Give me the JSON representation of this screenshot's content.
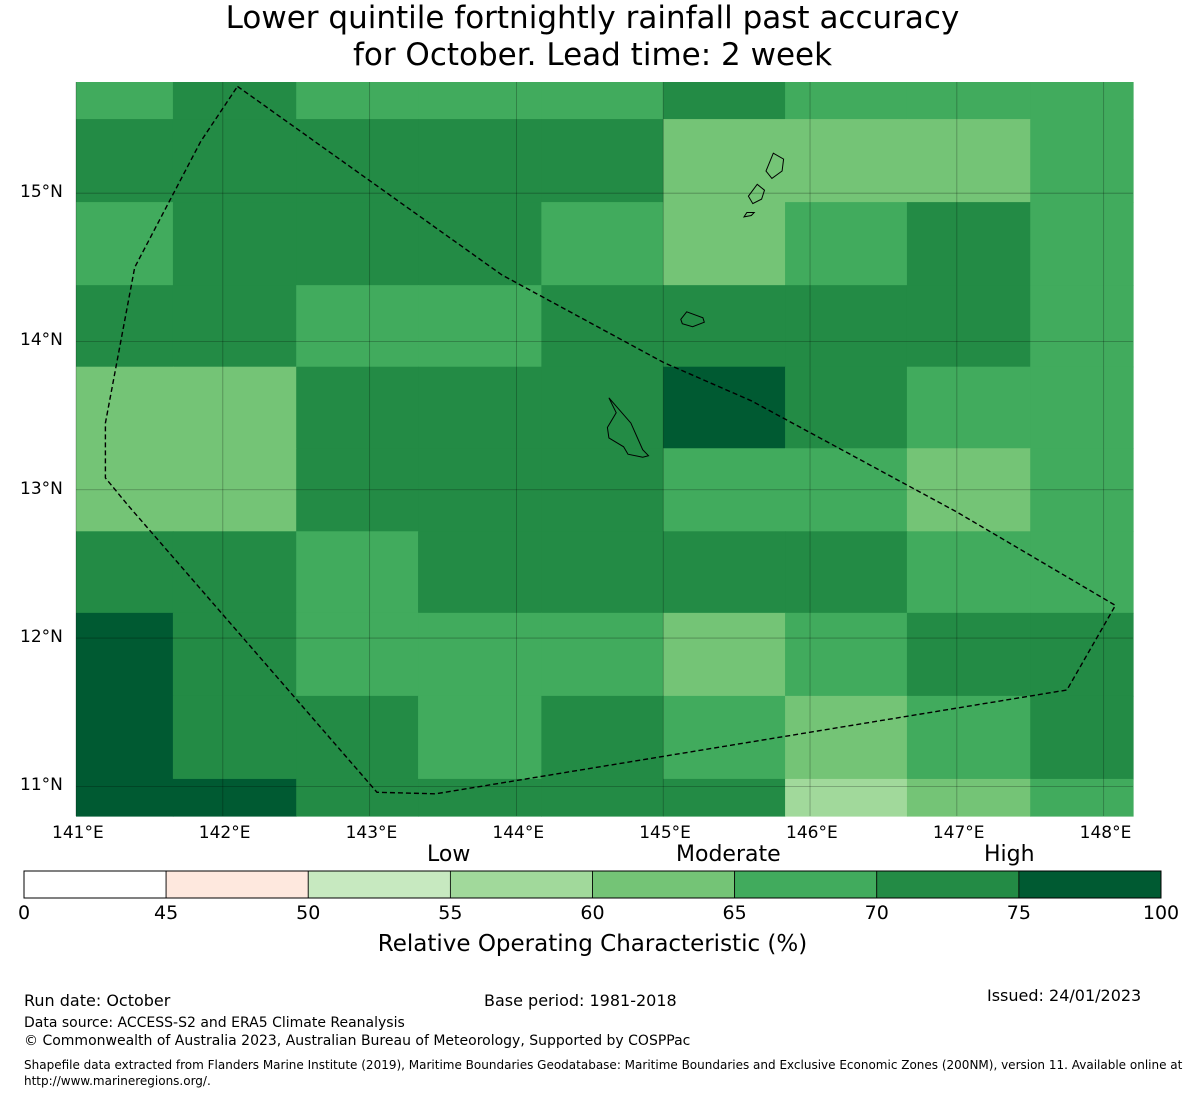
{
  "title_line1": "Lower quintile fortnightly rainfall past accuracy",
  "title_line2": "for October. Lead time: 2 week",
  "map": {
    "lon_ticks": [
      "141°E",
      "142°E",
      "143°E",
      "144°E",
      "145°E",
      "146°E",
      "147°E",
      "148°E"
    ],
    "lat_ticks": [
      "15°N",
      "14°N",
      "13°N",
      "12°N",
      "11°N"
    ],
    "lon_values": [
      141,
      142,
      143,
      144,
      145,
      146,
      147,
      148
    ],
    "lat_values": [
      15,
      14,
      13,
      12,
      11
    ],
    "lon_range": [
      141.0,
      148.2
    ],
    "lat_range": [
      10.8,
      15.75
    ],
    "cell_edges_lon": [
      141.0,
      141.66,
      142.5,
      143.33,
      144.17,
      145.0,
      145.83,
      146.66,
      147.5,
      148.2
    ],
    "cell_edges_lat": [
      15.75,
      15.5,
      14.94,
      14.38,
      13.83,
      13.28,
      12.72,
      12.17,
      11.61,
      11.05,
      10.8
    ],
    "grid_classes": [
      [
        5,
        6,
        5,
        5,
        5,
        6,
        5,
        5,
        5
      ],
      [
        6,
        6,
        6,
        6,
        6,
        4,
        4,
        4,
        5
      ],
      [
        5,
        6,
        6,
        6,
        5,
        4,
        5,
        6,
        5
      ],
      [
        6,
        6,
        5,
        5,
        6,
        6,
        6,
        6,
        5
      ],
      [
        4,
        4,
        6,
        6,
        6,
        7,
        6,
        5,
        5
      ],
      [
        4,
        4,
        6,
        6,
        6,
        5,
        5,
        4,
        5
      ],
      [
        6,
        6,
        5,
        6,
        6,
        6,
        6,
        5,
        5
      ],
      [
        7,
        6,
        5,
        5,
        5,
        4,
        5,
        6,
        6
      ],
      [
        7,
        6,
        6,
        5,
        6,
        5,
        4,
        5,
        6
      ],
      [
        7,
        7,
        6,
        6,
        6,
        6,
        3,
        4,
        5
      ]
    ],
    "eez_boundary": [
      [
        142.1,
        15.72
      ],
      [
        143.9,
        14.45
      ],
      [
        145.0,
        13.86
      ],
      [
        145.6,
        13.6
      ],
      [
        147.0,
        12.85
      ],
      [
        148.08,
        12.22
      ],
      [
        147.75,
        11.65
      ],
      [
        143.45,
        10.95
      ],
      [
        143.05,
        10.96
      ],
      [
        141.35,
        12.9
      ],
      [
        141.2,
        13.08
      ],
      [
        141.2,
        13.45
      ],
      [
        141.4,
        14.5
      ],
      [
        141.85,
        15.35
      ],
      [
        142.1,
        15.72
      ]
    ],
    "islands": [
      [
        [
          144.63,
          13.62
        ],
        [
          144.78,
          13.45
        ],
        [
          144.86,
          13.27
        ],
        [
          144.9,
          13.23
        ],
        [
          144.86,
          13.22
        ],
        [
          144.76,
          13.24
        ],
        [
          144.73,
          13.29
        ],
        [
          144.63,
          13.35
        ],
        [
          144.62,
          13.42
        ],
        [
          144.65,
          13.47
        ],
        [
          144.68,
          13.52
        ],
        [
          144.63,
          13.62
        ]
      ],
      [
        [
          145.16,
          14.2
        ],
        [
          145.27,
          14.16
        ],
        [
          145.28,
          14.13
        ],
        [
          145.2,
          14.1
        ],
        [
          145.13,
          14.12
        ],
        [
          145.12,
          14.15
        ],
        [
          145.16,
          14.2
        ]
      ],
      [
        [
          145.75,
          15.27
        ],
        [
          145.82,
          15.23
        ],
        [
          145.81,
          15.15
        ],
        [
          145.74,
          15.1
        ],
        [
          145.7,
          15.15
        ],
        [
          145.75,
          15.27
        ]
      ],
      [
        [
          145.64,
          15.06
        ],
        [
          145.69,
          15.02
        ],
        [
          145.67,
          14.96
        ],
        [
          145.61,
          14.93
        ],
        [
          145.58,
          14.98
        ],
        [
          145.64,
          15.06
        ]
      ],
      [
        [
          145.57,
          14.87
        ],
        [
          145.62,
          14.87
        ],
        [
          145.6,
          14.85
        ],
        [
          145.55,
          14.84
        ],
        [
          145.57,
          14.87
        ]
      ]
    ]
  },
  "colorbar": {
    "categories": [
      "Low",
      "Moderate",
      "High"
    ],
    "tick_labels": [
      "0",
      "45",
      "50",
      "55",
      "60",
      "65",
      "70",
      "75",
      "100"
    ],
    "colors": [
      "#ffffff",
      "#fee8de",
      "#c7e9c0",
      "#a1d99b",
      "#74c476",
      "#41ab5d",
      "#238b45",
      "#005a32"
    ],
    "title": "Relative Operating Characteristic (%)"
  },
  "footer": {
    "run_date": "Run date: October",
    "base_period": "Base period: 1981-2018",
    "issued": "Issued: 24/01/2023",
    "data_source": "Data source: ACCESS-S2 and ERA5 Climate Reanalysis",
    "copyright": "© Commonwealth of Australia 2023, Australian Bureau of Meteorology, Supported by COSPPac",
    "shapefile_note": "Shapefile data extracted from Flanders Marine Institute (2019), Maritime Boundaries Geodatabase: Maritime Boundaries and Exclusive Economic Zones (200NM), version 11. Available online at http://www.marineregions.org/."
  }
}
